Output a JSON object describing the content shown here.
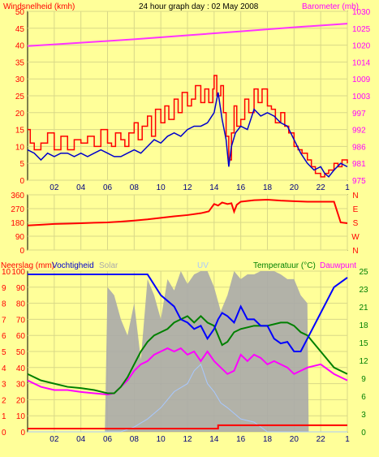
{
  "header": {
    "left_title": "Windsnelheid (kmh)",
    "center_title": "24 hour graph day : 02 May 2008",
    "right_title": "Barometer (mb)"
  },
  "bottom_labels": {
    "neerslag": "Neerslag (mm)",
    "vochtigheid": "Vochtigheid",
    "solar": "Solar",
    "uv": "UV",
    "temperatuur": "Temperatuur (°C)",
    "dauwpunt": "Dauwpunt"
  },
  "colors": {
    "background": "#ffff99",
    "plot_bg": "#ffff99",
    "grid": "#e6e6a0",
    "windsnelheid_gust": "#ff0000",
    "windsnelheid_avg": "#0000cc",
    "barometer": "#ff33ff",
    "direction": "#ff0000",
    "vochtigheid": "#0000ff",
    "temperatuur": "#008000",
    "dauwpunt": "#ff00ff",
    "solar": "#aaaaaa",
    "uv": "#a8c8ff",
    "neerslag": "#ff0000",
    "left_text": "#ff0000",
    "right_text_top": "#ff00ff",
    "right_text_bottom": "#008000"
  },
  "chart_data": [
    {
      "type": "line",
      "x_ticks": [
        "02",
        "04",
        "06",
        "08",
        "10",
        "12",
        "14",
        "16",
        "18",
        "20",
        "22",
        "1"
      ],
      "xlabel": "",
      "ylabel_left": "Windsnelheid (kmh)",
      "ylabel_right": "Barometer (mb)",
      "y_left_ticks": [
        "0",
        "5",
        "10",
        "15",
        "20",
        "25",
        "30",
        "35",
        "40",
        "45",
        "50"
      ],
      "y_left_range": [
        0,
        50
      ],
      "y_right_ticks": [
        "975",
        "981",
        "986",
        "992",
        "997",
        "1003",
        "1009",
        "1014",
        "1020",
        "1025",
        "1030"
      ],
      "y_right_range": [
        975,
        1030
      ],
      "hours_range": [
        0,
        24
      ],
      "series": [
        {
          "name": "Windsnelheid",
          "axis": "left",
          "step": true,
          "x": [
            0,
            0.2,
            0.5,
            1,
            1.5,
            2,
            2.5,
            3,
            3.5,
            4,
            4.5,
            5,
            5.5,
            6,
            6.3,
            6.6,
            7,
            7.3,
            7.6,
            8,
            8.3,
            8.6,
            9,
            9.3,
            9.6,
            10,
            10.3,
            10.6,
            11,
            11.3,
            11.6,
            12,
            12.3,
            12.6,
            13,
            13.3,
            13.6,
            13.9,
            14,
            14.2,
            14.5,
            14.7,
            14.9,
            15.1,
            15.3,
            15.5,
            15.7,
            16,
            16.3,
            16.6,
            17,
            17.3,
            17.6,
            18,
            18.3,
            18.6,
            19,
            19.3,
            19.6,
            20,
            20.3,
            20.6,
            21,
            21.3,
            21.6,
            22,
            22.3,
            22.6,
            23,
            23.3,
            23.6,
            24
          ],
          "values": [
            15,
            11,
            9,
            11,
            14,
            9,
            13,
            9,
            12,
            11,
            13,
            10,
            15,
            11,
            10,
            14,
            12,
            10,
            14,
            17,
            12,
            16,
            19,
            13,
            21,
            17,
            22,
            18,
            24,
            20,
            26,
            22,
            24,
            28,
            23,
            27,
            23,
            27,
            31,
            25,
            28,
            20,
            13,
            6,
            14,
            22,
            16,
            18,
            24,
            20,
            27,
            23,
            27,
            22,
            21,
            17,
            20,
            16,
            14,
            10,
            9,
            8,
            6,
            4,
            2,
            1,
            2,
            3,
            5,
            4,
            6,
            5
          ]
        },
        {
          "name": "",
          "axis": "left",
          "step": false,
          "x": [
            0,
            0.5,
            1,
            1.5,
            2,
            2.5,
            3,
            3.5,
            4,
            4.5,
            5,
            5.5,
            6,
            6.5,
            7,
            7.5,
            8,
            8.5,
            9,
            9.5,
            10,
            10.5,
            11,
            11.5,
            12,
            12.5,
            13,
            13.5,
            14,
            14.3,
            14.6,
            14.9,
            15.1,
            15.3,
            15.6,
            16,
            16.5,
            17,
            17.5,
            18,
            18.5,
            19,
            19.5,
            20,
            20.5,
            21,
            21.5,
            22,
            22.3,
            22.6,
            23,
            23.5,
            24
          ],
          "values": [
            9,
            8,
            6,
            8,
            7,
            8,
            8,
            7,
            8,
            7,
            8,
            9,
            8,
            7,
            7,
            8,
            9,
            8,
            10,
            12,
            11,
            13,
            14,
            13,
            15,
            16,
            16,
            17,
            20,
            26,
            18,
            12,
            4,
            10,
            14,
            16,
            15,
            21,
            19,
            20,
            19,
            17,
            16,
            12,
            8,
            5,
            3,
            4,
            2,
            1,
            3,
            5,
            4
          ]
        },
        {
          "name": "Barometer",
          "axis": "right",
          "step": false,
          "x": [
            0,
            4,
            8,
            12,
            16,
            20,
            24
          ],
          "values": [
            1018.7,
            1019.8,
            1020.9,
            1022.2,
            1023.5,
            1024.8,
            1026.0
          ]
        }
      ]
    },
    {
      "type": "line",
      "ylabel_left": "",
      "y_left_ticks": [
        "0",
        "90",
        "180",
        "270",
        "360"
      ],
      "y_left_range": [
        0,
        360
      ],
      "y_right_ticks": [
        "N",
        "W",
        "S",
        "E",
        "N"
      ],
      "series": [
        {
          "name": "",
          "x": [
            0,
            1,
            2,
            3,
            4,
            5,
            6,
            7,
            8,
            9,
            10,
            11,
            12,
            13,
            13.6,
            14,
            14.3,
            14.6,
            15,
            15.3,
            15.5,
            15.7,
            16,
            17,
            18,
            19,
            20,
            21,
            22,
            23,
            23.5,
            24
          ],
          "values": [
            160,
            165,
            170,
            172,
            175,
            178,
            180,
            185,
            192,
            200,
            210,
            220,
            228,
            240,
            252,
            300,
            290,
            310,
            300,
            305,
            250,
            295,
            315,
            325,
            328,
            322,
            318,
            315,
            315,
            315,
            180,
            175
          ]
        }
      ]
    },
    {
      "type": "area",
      "y_left_ticks": [
        "0",
        "1",
        "2",
        "3",
        "4",
        "5",
        "6",
        "7",
        "8",
        "9",
        "10",
        "10",
        "20",
        "30",
        "40",
        "50",
        "60",
        "70",
        "80",
        "90",
        "100"
      ],
      "y_left_range_vochtigheid": [
        0,
        100
      ],
      "y_right_ticks": [
        "0",
        "3",
        "6",
        "9",
        "12",
        "15",
        "18",
        "21",
        "23",
        "25"
      ],
      "y_right_range": [
        0,
        25
      ],
      "series": [
        {
          "name": "Vochtigheid",
          "axis": "left",
          "x": [
            0,
            1,
            2,
            3,
            4,
            5,
            6,
            7,
            8,
            9,
            10,
            11,
            11.5,
            12,
            12.5,
            13,
            13.5,
            14,
            14.3,
            14.6,
            15,
            15.5,
            16,
            16.5,
            17,
            17.5,
            18,
            18.5,
            19,
            19.5,
            20,
            20.5,
            21,
            22,
            23,
            24
          ],
          "values": [
            98,
            98,
            98,
            98,
            98,
            98,
            98,
            98,
            98,
            98,
            85,
            78,
            70,
            68,
            64,
            66,
            58,
            64,
            70,
            74,
            72,
            68,
            78,
            70,
            70,
            66,
            66,
            58,
            55,
            56,
            50,
            50,
            58,
            74,
            90,
            96
          ]
        },
        {
          "name": "Temperatuur",
          "axis": "right",
          "x": [
            0,
            1,
            2,
            3,
            4,
            5,
            6,
            6.5,
            7,
            7.5,
            8,
            8.5,
            9,
            9.5,
            10,
            10.5,
            11,
            11.5,
            12,
            12.5,
            13,
            13.5,
            14,
            14.3,
            14.6,
            15,
            15.5,
            16,
            17,
            18,
            19,
            19.5,
            20,
            20.5,
            21,
            22,
            23,
            24
          ],
          "values": [
            9,
            8,
            7.5,
            7,
            6.8,
            6.5,
            6,
            6,
            7,
            8.5,
            10.5,
            12.5,
            14,
            15,
            15.5,
            16,
            17,
            17.5,
            18,
            17,
            18,
            17,
            16.5,
            15,
            13.5,
            14,
            15.5,
            16,
            16.5,
            16.5,
            17,
            17,
            16.5,
            15.5,
            15,
            12.5,
            10,
            9
          ]
        },
        {
          "name": "Dauwpunt",
          "axis": "right",
          "x": [
            0,
            1,
            2,
            3,
            4,
            5,
            6,
            6.5,
            7,
            7.5,
            8,
            8.5,
            9,
            9.5,
            10,
            10.5,
            11,
            11.5,
            12,
            12.5,
            13,
            13.5,
            14,
            14.5,
            15,
            15.5,
            16,
            16.5,
            17,
            17.5,
            18,
            18.5,
            19,
            19.5,
            20,
            21,
            22,
            23,
            24
          ],
          "values": [
            8,
            7,
            6.5,
            6.5,
            6.2,
            6,
            5.8,
            6,
            7,
            8,
            9.5,
            10.5,
            11,
            12,
            12.5,
            13,
            12.5,
            13,
            12,
            12.5,
            11,
            12.5,
            11,
            10,
            9,
            9.5,
            12,
            11,
            12,
            11.5,
            10.5,
            11,
            10.5,
            10,
            9,
            10,
            10.5,
            9,
            8
          ]
        },
        {
          "name": "Solar",
          "axis": "left",
          "x": [
            0,
            5.8,
            6,
            6.5,
            7,
            7.5,
            8,
            8.5,
            9,
            9.5,
            10,
            10.5,
            11,
            11.5,
            12,
            12.5,
            13,
            13.5,
            14,
            14.5,
            15,
            15.5,
            16,
            16.5,
            17,
            17.5,
            18,
            18.5,
            19,
            19.5,
            20,
            20.5,
            21,
            21.1,
            24
          ],
          "values": [
            0,
            0,
            90,
            85,
            70,
            60,
            80,
            45,
            95,
            85,
            70,
            95,
            88,
            100,
            92,
            98,
            100,
            100,
            90,
            75,
            85,
            100,
            95,
            98,
            98,
            100,
            100,
            100,
            98,
            95,
            95,
            85,
            80,
            0,
            0
          ]
        },
        {
          "name": "UV",
          "axis": "left",
          "x": [
            0,
            7,
            8,
            9,
            10,
            11,
            12,
            12.5,
            13,
            13.5,
            14,
            14.5,
            15,
            16,
            17,
            18,
            24
          ],
          "values": [
            0,
            0,
            3,
            8,
            15,
            25,
            30,
            38,
            42,
            30,
            25,
            18,
            15,
            8,
            6,
            0,
            0
          ]
        },
        {
          "name": "Neerslag",
          "axis": "left",
          "x": [
            0,
            14,
            14.3,
            24
          ],
          "values": [
            0,
            0,
            0.5,
            0.5
          ]
        }
      ]
    }
  ]
}
